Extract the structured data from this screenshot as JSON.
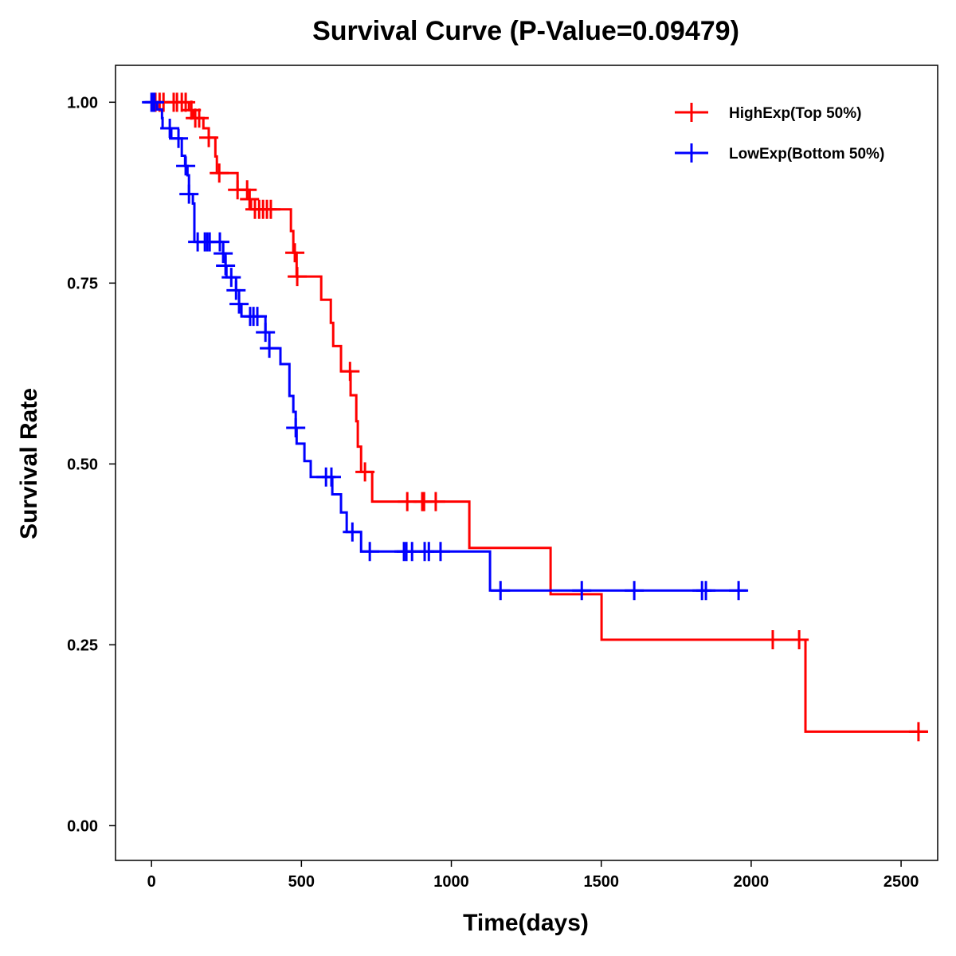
{
  "chart_data": {
    "type": "line",
    "subtype": "kaplan-meier",
    "title": "Survival Curve (P-Value=0.09479)",
    "xlabel": "Time(days)",
    "ylabel": "Survival Rate",
    "xlim": [
      -120,
      2622
    ],
    "ylim": [
      -0.048,
      1.051
    ],
    "xticks": [
      0,
      500,
      1000,
      1500,
      2000,
      2500
    ],
    "xtick_labels": [
      "0",
      "500",
      "1000",
      "1500",
      "2000",
      "2500"
    ],
    "yticks": [
      0,
      0.25,
      0.5,
      0.75,
      1.0
    ],
    "ytick_labels": [
      "0.00",
      "0.25",
      "0.50",
      "0.75",
      "1.00"
    ],
    "grid": false,
    "legend_position": "top-right",
    "series": [
      {
        "name": "HighExp(Top 50%)",
        "color": "#FF0000",
        "end_time": 2590,
        "steps": [
          [
            0,
            1.0
          ],
          [
            125,
            0.989
          ],
          [
            140,
            0.978
          ],
          [
            173,
            0.964
          ],
          [
            191,
            0.951
          ],
          [
            213,
            0.925
          ],
          [
            218,
            0.902
          ],
          [
            287,
            0.879
          ],
          [
            327,
            0.866
          ],
          [
            332,
            0.852
          ],
          [
            465,
            0.822
          ],
          [
            473,
            0.792
          ],
          [
            484,
            0.759
          ],
          [
            566,
            0.727
          ],
          [
            598,
            0.695
          ],
          [
            606,
            0.663
          ],
          [
            632,
            0.628
          ],
          [
            664,
            0.595
          ],
          [
            683,
            0.559
          ],
          [
            688,
            0.524
          ],
          [
            699,
            0.489
          ],
          [
            736,
            0.448
          ],
          [
            1060,
            0.384
          ],
          [
            1331,
            0.32
          ],
          [
            1501,
            0.257
          ],
          [
            2181,
            0.13
          ]
        ],
        "censored": [
          13,
          27,
          40,
          74,
          85,
          101,
          114,
          133,
          146,
          159,
          191,
          226,
          287,
          319,
          327,
          345,
          359,
          372,
          385,
          398,
          478,
          486,
          662,
          712,
          853,
          903,
          909,
          948,
          2072,
          2160,
          2558
        ]
      },
      {
        "name": "LowExp(Bottom 50%)",
        "color": "#0000FF",
        "end_time": 1985,
        "steps": [
          [
            0,
            1.0
          ],
          [
            19,
            0.99
          ],
          [
            35,
            0.978
          ],
          [
            37,
            0.964
          ],
          [
            66,
            0.95
          ],
          [
            101,
            0.926
          ],
          [
            112,
            0.912
          ],
          [
            120,
            0.899
          ],
          [
            125,
            0.873
          ],
          [
            138,
            0.86
          ],
          [
            143,
            0.807
          ],
          [
            239,
            0.791
          ],
          [
            247,
            0.774
          ],
          [
            250,
            0.758
          ],
          [
            282,
            0.74
          ],
          [
            292,
            0.721
          ],
          [
            300,
            0.704
          ],
          [
            380,
            0.682
          ],
          [
            393,
            0.66
          ],
          [
            430,
            0.638
          ],
          [
            460,
            0.594
          ],
          [
            473,
            0.572
          ],
          [
            481,
            0.55
          ],
          [
            484,
            0.528
          ],
          [
            510,
            0.504
          ],
          [
            531,
            0.482
          ],
          [
            603,
            0.458
          ],
          [
            632,
            0.433
          ],
          [
            651,
            0.406
          ],
          [
            699,
            0.379
          ],
          [
            1129,
            0.325
          ]
        ],
        "censored": [
          0,
          5,
          10,
          61,
          90,
          114,
          125,
          154,
          178,
          186,
          194,
          228,
          239,
          247,
          266,
          282,
          292,
          329,
          340,
          353,
          380,
          393,
          481,
          582,
          600,
          670,
          728,
          842,
          850,
          869,
          911,
          925,
          964,
          1164,
          1435,
          1610,
          1836,
          1849,
          1958
        ]
      }
    ]
  }
}
